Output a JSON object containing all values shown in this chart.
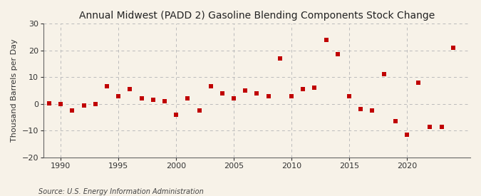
{
  "title": "Annual Midwest (PADD 2) Gasoline Blending Components Stock Change",
  "ylabel": "Thousand Barrels per Day",
  "source": "Source: U.S. Energy Information Administration",
  "background_color": "#f7f2e8",
  "plot_bg_color": "#f7f2e8",
  "marker_color": "#c00000",
  "grid_color": "#bbbbbb",
  "spine_color": "#666666",
  "ylim": [
    -20,
    30
  ],
  "yticks": [
    -20,
    -10,
    0,
    10,
    20,
    30
  ],
  "xlim": [
    1988.5,
    2025.5
  ],
  "xticks": [
    1990,
    1995,
    2000,
    2005,
    2010,
    2015,
    2020
  ],
  "years": [
    1989,
    1990,
    1991,
    1992,
    1993,
    1994,
    1995,
    1996,
    1997,
    1998,
    1999,
    2000,
    2001,
    2002,
    2003,
    2004,
    2005,
    2006,
    2007,
    2008,
    2009,
    2010,
    2011,
    2012,
    2013,
    2014,
    2015,
    2016,
    2017,
    2018,
    2019,
    2020,
    2021,
    2022,
    2023,
    2024
  ],
  "values": [
    0.3,
    0.0,
    -2.5,
    -0.5,
    0.0,
    6.5,
    3.0,
    5.5,
    2.0,
    1.5,
    1.0,
    -4.0,
    2.0,
    -2.5,
    6.5,
    4.0,
    2.0,
    5.0,
    4.0,
    3.0,
    17.0,
    3.0,
    5.5,
    6.0,
    24.0,
    18.5,
    3.0,
    -2.0,
    -2.5,
    11.0,
    -6.5,
    -11.5,
    8.0,
    -8.5,
    -8.5,
    21.0
  ],
  "title_fontsize": 10,
  "tick_fontsize": 8,
  "ylabel_fontsize": 8,
  "source_fontsize": 7
}
